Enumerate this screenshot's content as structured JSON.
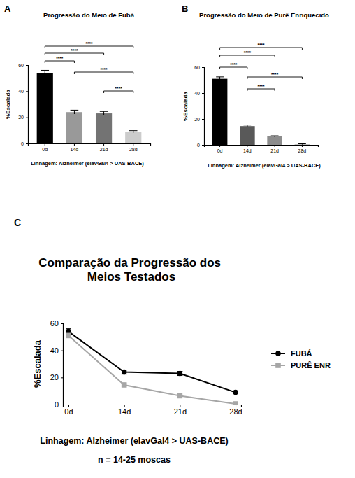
{
  "chart_data": [
    {
      "panel": "A",
      "type": "bar",
      "title": "Progressão do Meio de Fubá",
      "x_label": "Linhagem: Alzheimer (elavGal4 > UAS-BACE)",
      "y_label": "%Escalada",
      "categories": [
        "0d",
        "14d",
        "21d",
        "28d"
      ],
      "values": [
        54,
        24,
        23,
        9
      ],
      "errors": [
        2,
        1.5,
        1.5,
        0.8
      ],
      "colors": [
        "#000000",
        "#999999",
        "#737373",
        "#cccccc"
      ],
      "ylim": [
        0,
        60
      ],
      "yticks": [
        0,
        20,
        40,
        60
      ],
      "comparisons": [
        {
          "categories": [
            "0d",
            "14d"
          ],
          "label": "****"
        },
        {
          "categories": [
            "0d",
            "21d"
          ],
          "label": "****"
        },
        {
          "categories": [
            "0d",
            "28d"
          ],
          "label": "****"
        },
        {
          "categories": [
            "14d",
            "28d"
          ],
          "label": "****"
        },
        {
          "categories": [
            "21d",
            "28d"
          ],
          "label": "****"
        }
      ]
    },
    {
      "panel": "B",
      "type": "bar",
      "title": "Progressão do Meio de Purê Enriquecido",
      "x_label": "Linhagem: Alzheimer (elavGal4 > UAS-BACE)",
      "y_label": "%Escalada",
      "categories": [
        "0d",
        "14d",
        "21d",
        "28d"
      ],
      "values": [
        51,
        14.5,
        6.5,
        0.5
      ],
      "errors": [
        1.5,
        0.8,
        0.5,
        0.3
      ],
      "colors": [
        "#000000",
        "#595959",
        "#8c8c8c",
        "#bfbfbf"
      ],
      "ylim": [
        0,
        60
      ],
      "yticks": [
        0,
        20,
        40,
        60
      ],
      "comparisons": [
        {
          "categories": [
            "0d",
            "14d"
          ],
          "label": "****"
        },
        {
          "categories": [
            "0d",
            "21d"
          ],
          "label": "****"
        },
        {
          "categories": [
            "0d",
            "28d"
          ],
          "label": "****"
        },
        {
          "categories": [
            "14d",
            "28d"
          ],
          "label": "****"
        },
        {
          "categories": [
            "14d",
            "21d"
          ],
          "label": "****"
        }
      ]
    },
    {
      "panel": "C",
      "type": "line",
      "title": "Comparação da Progressão dos Meios Testados",
      "x_label": "Linhagem: Alzheimer (elavGal4 > UAS-BACE)",
      "y_label": "%Escalada",
      "note": "n = 14-25 moscas",
      "categories": [
        "0d",
        "14d",
        "21d",
        "28d"
      ],
      "series": [
        {
          "name": "FUBÁ",
          "color": "#000000",
          "marker": "circle",
          "values": [
            54,
            24,
            23,
            9
          ],
          "errors": [
            2,
            1.5,
            1.5,
            0.8
          ]
        },
        {
          "name": "PURÊ ENR",
          "color": "#a6a6a6",
          "marker": "square",
          "values": [
            51,
            14.5,
            6.5,
            0.5
          ],
          "errors": [
            1.5,
            0.8,
            0.5,
            0.3
          ]
        }
      ],
      "ylim": [
        0,
        60
      ],
      "yticks": [
        0,
        20,
        40,
        60
      ],
      "legend": "right"
    }
  ]
}
